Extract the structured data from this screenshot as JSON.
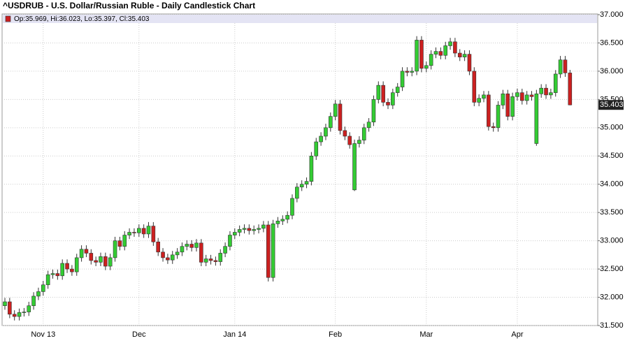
{
  "chart_data": {
    "type": "candlestick",
    "title": "^USDRUB - U.S. Dollar/Russian Ruble - Daily Candlestick Chart",
    "legend_text": "Op:35.969, Hi:36.023, Lo:35.397, Cl:35.403",
    "last_price_label": "35.403",
    "up_color": "#33cc33",
    "down_color": "#cc2020",
    "grid": true,
    "ylim": [
      31.5,
      37.0
    ],
    "yticks": [
      {
        "value": 31.5,
        "label": "31.500"
      },
      {
        "value": 32.0,
        "label": "32.000"
      },
      {
        "value": 32.5,
        "label": "32.500"
      },
      {
        "value": 33.0,
        "label": "33.000"
      },
      {
        "value": 33.5,
        "label": "33.500"
      },
      {
        "value": 34.0,
        "label": "34.000"
      },
      {
        "value": 34.5,
        "label": "34.500"
      },
      {
        "value": 35.0,
        "label": "35.000"
      },
      {
        "value": 35.5,
        "label": "35.500"
      },
      {
        "value": 36.0,
        "label": "36.000"
      },
      {
        "value": 36.5,
        "label": "36.500"
      },
      {
        "value": 37.0,
        "label": "37.000"
      }
    ],
    "categories": [
      null,
      null,
      null,
      null,
      null,
      null,
      null,
      null,
      "Nov 13",
      null,
      null,
      null,
      null,
      null,
      null,
      null,
      null,
      null,
      null,
      null,
      null,
      null,
      null,
      null,
      null,
      null,
      null,
      null,
      "Dec",
      null,
      null,
      null,
      null,
      null,
      null,
      null,
      null,
      null,
      null,
      null,
      null,
      null,
      null,
      null,
      null,
      null,
      null,
      null,
      "Jan 14",
      null,
      null,
      null,
      null,
      null,
      null,
      null,
      null,
      null,
      null,
      null,
      null,
      null,
      null,
      null,
      null,
      null,
      null,
      null,
      null,
      "Feb",
      null,
      null,
      null,
      null,
      null,
      null,
      null,
      null,
      null,
      null,
      null,
      null,
      null,
      null,
      null,
      null,
      null,
      null,
      "Mar",
      null,
      null,
      null,
      null,
      null,
      null,
      null,
      null,
      null,
      null,
      null,
      null,
      null,
      null,
      null,
      null,
      null,
      null,
      "Apr",
      null,
      null,
      null,
      null,
      null,
      null,
      null,
      null,
      null,
      null,
      null
    ],
    "open": [
      31.85,
      31.92,
      31.7,
      31.66,
      31.73,
      31.74,
      31.85,
      32.02,
      32.1,
      32.22,
      32.4,
      32.42,
      32.38,
      32.6,
      32.5,
      32.45,
      32.7,
      32.85,
      32.78,
      32.65,
      32.62,
      32.72,
      32.55,
      32.7,
      33.0,
      32.9,
      33.1,
      33.15,
      33.14,
      33.22,
      33.12,
      33.26,
      32.98,
      32.8,
      32.7,
      32.66,
      32.75,
      32.8,
      32.9,
      32.94,
      32.88,
      32.96,
      32.62,
      32.68,
      32.65,
      32.63,
      32.78,
      32.9,
      33.1,
      33.15,
      33.2,
      33.22,
      33.18,
      33.2,
      33.22,
      33.28,
      32.35,
      33.3,
      33.35,
      33.38,
      33.45,
      33.75,
      33.95,
      34.0,
      34.05,
      34.5,
      34.75,
      34.85,
      35.0,
      35.2,
      35.42,
      34.95,
      34.85,
      33.9,
      34.72,
      34.78,
      35.0,
      35.1,
      35.5,
      35.75,
      35.45,
      35.4,
      35.62,
      35.72,
      36.0,
      35.98,
      36.0,
      36.55,
      36.05,
      36.1,
      36.3,
      36.35,
      36.28,
      36.45,
      36.52,
      36.32,
      36.25,
      36.3,
      36.0,
      35.45,
      35.52,
      35.58,
      35.02,
      35.0,
      35.4,
      35.6,
      35.2,
      35.55,
      35.62,
      35.48,
      35.58,
      34.72,
      35.6,
      35.7,
      35.58,
      35.62,
      35.95,
      36.2,
      35.969
    ],
    "high": [
      31.99,
      31.99,
      31.77,
      31.8,
      31.81,
      31.92,
      32.09,
      32.17,
      32.29,
      32.47,
      32.49,
      32.49,
      32.67,
      32.67,
      32.57,
      32.77,
      32.92,
      32.92,
      32.85,
      32.72,
      32.79,
      32.79,
      32.77,
      33.07,
      33.07,
      33.17,
      33.22,
      33.22,
      33.29,
      33.29,
      33.33,
      33.33,
      33.05,
      32.87,
      32.77,
      32.82,
      32.87,
      32.97,
      33.01,
      33.01,
      33.03,
      33.03,
      32.75,
      32.75,
      32.72,
      32.85,
      32.97,
      33.17,
      33.22,
      33.27,
      33.29,
      33.29,
      33.27,
      33.29,
      33.35,
      33.35,
      33.37,
      33.42,
      33.45,
      33.52,
      33.82,
      34.02,
      34.07,
      34.12,
      34.57,
      34.82,
      34.92,
      35.07,
      35.27,
      35.49,
      35.49,
      35.02,
      34.92,
      34.79,
      34.85,
      35.07,
      35.17,
      35.57,
      35.82,
      35.82,
      35.52,
      35.69,
      35.79,
      36.07,
      36.07,
      36.07,
      36.62,
      36.62,
      36.17,
      36.37,
      36.42,
      36.42,
      36.52,
      36.59,
      36.59,
      36.39,
      36.37,
      36.37,
      36.07,
      35.59,
      35.65,
      35.65,
      35.09,
      35.47,
      35.67,
      35.67,
      35.62,
      35.69,
      35.69,
      35.65,
      35.65,
      35.67,
      35.77,
      35.77,
      35.69,
      36.02,
      36.27,
      36.27,
      36.023
    ],
    "low": [
      31.78,
      31.63,
      31.59,
      31.59,
      31.66,
      31.67,
      31.78,
      31.95,
      32.03,
      32.15,
      32.33,
      32.31,
      32.31,
      32.43,
      32.38,
      32.38,
      32.63,
      32.71,
      32.58,
      32.55,
      32.55,
      32.48,
      32.48,
      32.63,
      32.83,
      32.83,
      33.03,
      33.07,
      33.07,
      33.05,
      33.05,
      32.91,
      32.73,
      32.63,
      32.59,
      32.59,
      32.68,
      32.73,
      32.83,
      32.81,
      32.81,
      32.55,
      32.55,
      32.58,
      32.56,
      32.56,
      32.71,
      32.83,
      33.03,
      33.08,
      33.13,
      33.11,
      33.11,
      33.13,
      33.15,
      32.28,
      32.28,
      33.23,
      33.28,
      33.31,
      33.38,
      33.68,
      33.88,
      33.93,
      33.98,
      34.43,
      34.68,
      34.78,
      34.93,
      35.13,
      34.88,
      34.78,
      34.63,
      33.88,
      34.65,
      34.71,
      34.93,
      35.03,
      35.43,
      35.38,
      35.33,
      35.33,
      35.55,
      35.65,
      35.91,
      35.91,
      35.93,
      35.98,
      35.98,
      36.03,
      36.23,
      36.21,
      36.21,
      36.38,
      36.25,
      36.18,
      36.18,
      35.93,
      35.38,
      35.38,
      35.45,
      34.95,
      34.93,
      34.93,
      35.33,
      35.13,
      35.13,
      35.48,
      35.41,
      35.41,
      35.48,
      34.68,
      35.53,
      35.51,
      35.51,
      35.55,
      35.88,
      35.9,
      35.397
    ],
    "close": [
      31.92,
      31.7,
      31.66,
      31.73,
      31.74,
      31.85,
      32.02,
      32.1,
      32.22,
      32.4,
      32.42,
      32.38,
      32.6,
      32.5,
      32.45,
      32.7,
      32.85,
      32.78,
      32.65,
      32.62,
      32.72,
      32.55,
      32.7,
      33.0,
      32.9,
      33.1,
      33.15,
      33.14,
      33.22,
      33.12,
      33.26,
      32.98,
      32.8,
      32.7,
      32.66,
      32.75,
      32.8,
      32.9,
      32.94,
      32.88,
      32.96,
      32.62,
      32.68,
      32.65,
      32.63,
      32.78,
      32.9,
      33.1,
      33.15,
      33.2,
      33.22,
      33.18,
      33.2,
      33.22,
      33.28,
      32.35,
      33.3,
      33.35,
      33.38,
      33.45,
      33.75,
      33.95,
      34.0,
      34.05,
      34.5,
      34.75,
      34.85,
      35.0,
      35.2,
      35.42,
      34.95,
      34.85,
      34.7,
      34.72,
      34.78,
      35.0,
      35.1,
      35.5,
      35.75,
      35.45,
      35.4,
      35.62,
      35.72,
      36.0,
      35.98,
      36.0,
      36.55,
      36.05,
      36.1,
      36.3,
      36.35,
      36.28,
      36.45,
      36.52,
      36.32,
      36.25,
      36.3,
      36.0,
      35.45,
      35.52,
      35.58,
      35.02,
      35.0,
      35.4,
      35.6,
      35.2,
      35.55,
      35.62,
      35.48,
      35.58,
      35.55,
      35.6,
      35.7,
      35.58,
      35.62,
      35.95,
      36.2,
      35.97,
      35.403
    ]
  }
}
